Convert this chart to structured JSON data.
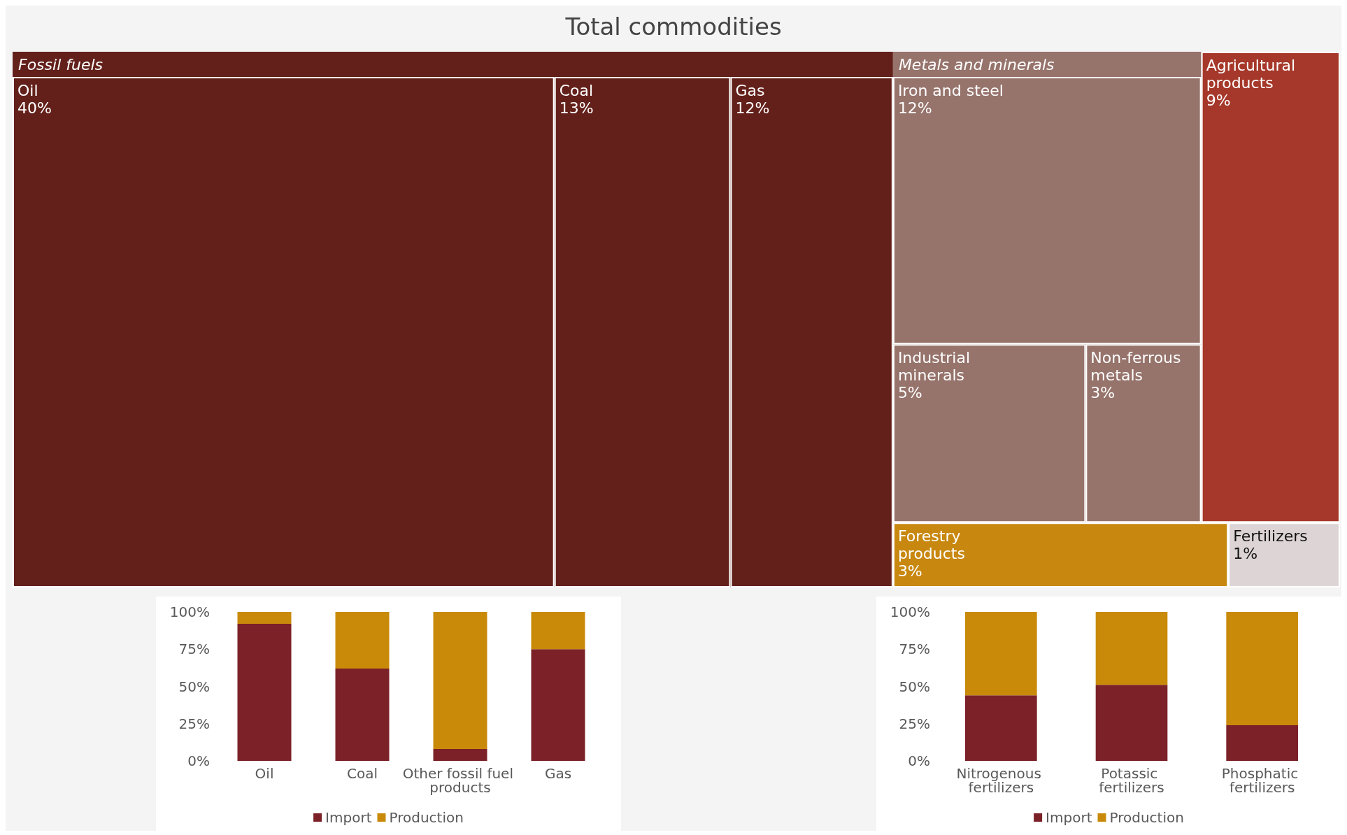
{
  "chart_data": [
    {
      "type": "other",
      "title": "Total commodities",
      "data_labels": true,
      "categories": [
        "Oil",
        "Coal",
        "Gas",
        "Iron and steel",
        "Industrial minerals",
        "Non-ferrous metals",
        "Agricultural products",
        "Forestry products",
        "Fertilizers"
      ],
      "series": [
        {
          "name": "Fossil fuels",
          "color": "#63201a",
          "values": [
            40,
            13,
            12,
            null,
            null,
            null,
            null,
            null,
            null
          ],
          "value_labels": [
            "40%",
            "13%",
            "12%",
            null,
            null,
            null,
            null,
            null,
            null
          ]
        },
        {
          "name": "Metals and minerals",
          "color": "#96736b",
          "values": [
            null,
            null,
            null,
            12,
            5,
            3,
            null,
            null,
            null
          ],
          "value_labels": [
            null,
            null,
            null,
            "12%",
            "5%",
            "3%",
            null,
            null,
            null
          ]
        },
        {
          "color": "#a5382a",
          "values": [
            null,
            null,
            null,
            null,
            null,
            null,
            9,
            null,
            null
          ],
          "value_labels": [
            null,
            null,
            null,
            null,
            null,
            null,
            "9%",
            null,
            null
          ]
        },
        {
          "color": "#c8870f",
          "values": [
            null,
            null,
            null,
            null,
            null,
            null,
            null,
            3,
            null
          ],
          "value_labels": [
            null,
            null,
            null,
            null,
            null,
            null,
            null,
            "3%",
            null
          ]
        },
        {
          "color": "#ddd5d5",
          "values": [
            null,
            null,
            null,
            null,
            null,
            null,
            null,
            null,
            1
          ],
          "value_labels": [
            null,
            null,
            null,
            null,
            null,
            null,
            null,
            null,
            "1%"
          ]
        }
      ]
    },
    {
      "type": "bar",
      "stacked": true,
      "categories": [
        "Oil",
        "Coal",
        "Other fossil fuel products",
        "Gas"
      ],
      "series": [
        {
          "name": "Import",
          "color": "#7b2127",
          "values": [
            92,
            62,
            8,
            75
          ]
        },
        {
          "name": "Production",
          "color": "#c98a0a",
          "values": [
            8,
            38,
            92,
            25
          ]
        }
      ],
      "ylim": [
        0,
        100
      ],
      "yticks": [
        {
          "value": 0,
          "label": "0%"
        },
        {
          "value": 25,
          "label": "25%"
        },
        {
          "value": 50,
          "label": "50%"
        },
        {
          "value": 75,
          "label": "75%"
        },
        {
          "value": 100,
          "label": "100%"
        }
      ],
      "grid": false,
      "legend": "bottom"
    },
    {
      "type": "bar",
      "stacked": true,
      "categories": [
        "Nitrogenous fertilizers",
        "Potassic fertilizers",
        "Phosphatic fertilizers"
      ],
      "series": [
        {
          "name": "Import",
          "color": "#7b2127",
          "values": [
            44,
            51,
            24
          ]
        },
        {
          "name": "Production",
          "color": "#c98a0a",
          "values": [
            56,
            49,
            76
          ]
        }
      ],
      "ylim": [
        0,
        100
      ],
      "yticks": [
        {
          "value": 0,
          "label": "0%"
        },
        {
          "value": 25,
          "label": "25%"
        },
        {
          "value": 50,
          "label": "50%"
        },
        {
          "value": 75,
          "label": "75%"
        },
        {
          "value": 100,
          "label": "100%"
        }
      ],
      "grid": false,
      "legend": "bottom"
    }
  ]
}
